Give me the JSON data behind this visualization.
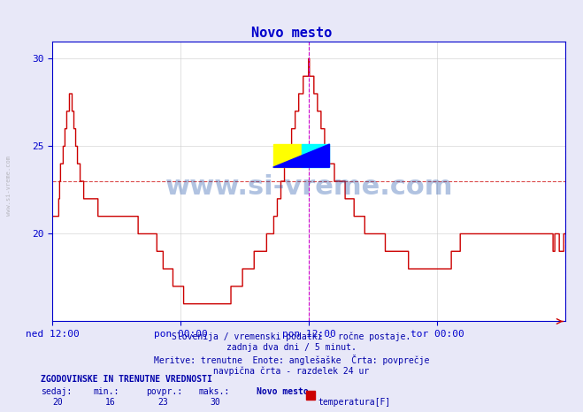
{
  "title": "Novo mesto",
  "title_color": "#0000cc",
  "bg_color": "#e8e8f8",
  "plot_bg_color": "#ffffff",
  "grid_color": "#cccccc",
  "line_color": "#cc0000",
  "avg_line_color": "#cc0000",
  "avg_line_value": 23,
  "vline_color": "#cc00cc",
  "ylim": [
    15,
    31
  ],
  "yticks": [
    20,
    25,
    30
  ],
  "xlabel_color": "#0000cc",
  "ylabel_color": "#0000cc",
  "xtick_labels": [
    "ned 12:00",
    "pon 00:00",
    "pon 12:00",
    "tor 00:00"
  ],
  "xtick_positions": [
    0.0,
    0.25,
    0.5,
    0.75
  ],
  "vline_positions": [
    0.5,
    1.0
  ],
  "footer_lines": [
    "Slovenija / vremenski podatki - ročne postaje.",
    "zadnja dva dni / 5 minut.",
    "Meritve: trenutne  Enote: anglešaške  Črta: povprečje",
    "navpična črta - razdelek 24 ur"
  ],
  "footer_color": "#0000aa",
  "legend_title": "ZGODOVINSKE IN TRENUTNE VREDNOSTI",
  "legend_headers": [
    "sedaj:",
    "min.:",
    "povpr.:",
    "maks.:"
  ],
  "legend_values": [
    "20",
    "16",
    "23",
    "30"
  ],
  "legend_series": "Novo mesto",
  "legend_color_box": "#cc0000",
  "legend_label": "temperatura[F]",
  "watermark_text": "www.si-vreme.com",
  "watermark_color": "#2255aa",
  "watermark_alpha": 0.35,
  "logo_yellow": "#ffff00",
  "logo_cyan": "#00ffff",
  "logo_blue": "#0000ff",
  "n_points": 576,
  "temperature_data": [
    21,
    21,
    21,
    21,
    21,
    21,
    21,
    22,
    23,
    24,
    24,
    24,
    25,
    25,
    26,
    26,
    27,
    27,
    27,
    28,
    28,
    28,
    27,
    27,
    26,
    26,
    25,
    25,
    24,
    24,
    24,
    23,
    23,
    23,
    23,
    22,
    22,
    22,
    22,
    22,
    22,
    22,
    22,
    22,
    22,
    22,
    22,
    22,
    22,
    22,
    22,
    21,
    21,
    21,
    21,
    21,
    21,
    21,
    21,
    21,
    21,
    21,
    21,
    21,
    21,
    21,
    21,
    21,
    21,
    21,
    21,
    21,
    21,
    21,
    21,
    21,
    21,
    21,
    21,
    21,
    21,
    21,
    21,
    21,
    21,
    21,
    21,
    21,
    21,
    21,
    21,
    21,
    21,
    21,
    21,
    21,
    20,
    20,
    20,
    20,
    20,
    20,
    20,
    20,
    20,
    20,
    20,
    20,
    20,
    20,
    20,
    20,
    20,
    20,
    20,
    20,
    20,
    19,
    19,
    19,
    19,
    19,
    19,
    19,
    18,
    18,
    18,
    18,
    18,
    18,
    18,
    18,
    18,
    18,
    18,
    17,
    17,
    17,
    17,
    17,
    17,
    17,
    17,
    17,
    17,
    17,
    17,
    16,
    16,
    16,
    16,
    16,
    16,
    16,
    16,
    16,
    16,
    16,
    16,
    16,
    16,
    16,
    16,
    16,
    16,
    16,
    16,
    16,
    16,
    16,
    16,
    16,
    16,
    16,
    16,
    16,
    16,
    16,
    16,
    16,
    16,
    16,
    16,
    16,
    16,
    16,
    16,
    16,
    16,
    16,
    16,
    16,
    16,
    16,
    16,
    16,
    16,
    16,
    16,
    16,
    17,
    17,
    17,
    17,
    17,
    17,
    17,
    17,
    17,
    17,
    17,
    17,
    17,
    18,
    18,
    18,
    18,
    18,
    18,
    18,
    18,
    18,
    18,
    18,
    18,
    18,
    19,
    19,
    19,
    19,
    19,
    19,
    19,
    19,
    19,
    19,
    19,
    19,
    19,
    19,
    20,
    20,
    20,
    20,
    20,
    20,
    20,
    20,
    21,
    21,
    21,
    21,
    22,
    22,
    22,
    22,
    23,
    23,
    23,
    23,
    24,
    24,
    24,
    24,
    25,
    25,
    25,
    25,
    26,
    26,
    26,
    26,
    27,
    27,
    27,
    27,
    28,
    28,
    28,
    28,
    28,
    29,
    29,
    29,
    29,
    29,
    29,
    30,
    29,
    29,
    29,
    29,
    29,
    28,
    28,
    28,
    28,
    27,
    27,
    27,
    27,
    26,
    26,
    26,
    26,
    25,
    25,
    25,
    25,
    25,
    24,
    24,
    24,
    24,
    24,
    24,
    23,
    23,
    23,
    23,
    23,
    23,
    23,
    23,
    23,
    23,
    23,
    23,
    22,
    22,
    22,
    22,
    22,
    22,
    22,
    22,
    22,
    22,
    21,
    21,
    21,
    21,
    21,
    21,
    21,
    21,
    21,
    21,
    21,
    21,
    20,
    20,
    20,
    20,
    20,
    20,
    20,
    20,
    20,
    20,
    20,
    20,
    20,
    20,
    20,
    20,
    20,
    20,
    20,
    20,
    20,
    20,
    20,
    19,
    19,
    19,
    19,
    19,
    19,
    19,
    19,
    19,
    19,
    19,
    19,
    19,
    19,
    19,
    19,
    19,
    19,
    19,
    19,
    19,
    19,
    19,
    19,
    19,
    19,
    18,
    18,
    18,
    18,
    18,
    18,
    18,
    18,
    18,
    18,
    18,
    18,
    18,
    18,
    18,
    18,
    18,
    18,
    18,
    18,
    18,
    18,
    18,
    18,
    18,
    18,
    18,
    18,
    18,
    18,
    18,
    18,
    18,
    18,
    18,
    18,
    18,
    18,
    18,
    18,
    18,
    18,
    18,
    18,
    18,
    18,
    18,
    18,
    19,
    19,
    19,
    19,
    19,
    19,
    19,
    19,
    19,
    19,
    20,
    20,
    20,
    20,
    20,
    20,
    20,
    20,
    20,
    20,
    20,
    20,
    20,
    20,
    20,
    20,
    20,
    20,
    20,
    20,
    20,
    20,
    20,
    20,
    20,
    20,
    20,
    20,
    20,
    20,
    20,
    20,
    20,
    20,
    20,
    20,
    20,
    20,
    20,
    20,
    20,
    20,
    20,
    20,
    20,
    20,
    20,
    20,
    20,
    20,
    20,
    20,
    20,
    20,
    20,
    20,
    20,
    20,
    20,
    20,
    20,
    20,
    20,
    20,
    20,
    20,
    20,
    20,
    20,
    20,
    20,
    20,
    20,
    20,
    20,
    20,
    20,
    20,
    20,
    20,
    20,
    20,
    20,
    20,
    20,
    20,
    20,
    20,
    20,
    20,
    20,
    20,
    20,
    20,
    20,
    20,
    20,
    20,
    20,
    20,
    20,
    20,
    20,
    20,
    19,
    19,
    20,
    20,
    20,
    20,
    20,
    19,
    19,
    19,
    19,
    19,
    20,
    20,
    20
  ]
}
